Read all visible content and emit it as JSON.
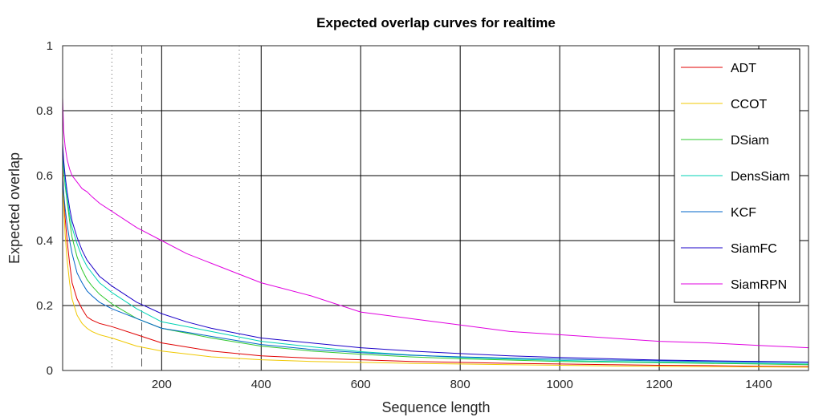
{
  "chart_data": {
    "type": "line",
    "title": "Expected overlap curves for realtime",
    "xlabel": "Sequence length",
    "ylabel": "Expected overlap",
    "xlim": [
      1,
      1500
    ],
    "ylim": [
      0,
      1
    ],
    "xticks": [
      200,
      400,
      600,
      800,
      1000,
      1200,
      1400
    ],
    "xtick_labels": [
      "200",
      "400",
      "600",
      "800",
      "1000",
      "1200",
      "1400"
    ],
    "yticks": [
      0,
      0.2,
      0.4,
      0.6,
      0.8,
      1
    ],
    "ytick_labels": [
      "0",
      "0.2",
      "0.4",
      "0.6",
      "0.8",
      "1"
    ],
    "grid": true,
    "legend_position": "top-right",
    "vertical_markers": [
      {
        "x": 100,
        "style": "dotted"
      },
      {
        "x": 160,
        "style": "dashed"
      },
      {
        "x": 356,
        "style": "dotted"
      }
    ],
    "series": [
      {
        "name": "ADT",
        "color": "#e00000",
        "x": [
          1,
          3,
          6,
          10,
          15,
          20,
          30,
          40,
          50,
          60,
          75,
          100,
          150,
          200,
          300,
          400,
          500,
          600,
          700,
          800,
          900,
          1000,
          1100,
          1200,
          1300,
          1400,
          1500
        ],
        "y": [
          0.63,
          0.55,
          0.47,
          0.4,
          0.33,
          0.27,
          0.22,
          0.19,
          0.165,
          0.155,
          0.145,
          0.135,
          0.11,
          0.085,
          0.06,
          0.045,
          0.038,
          0.033,
          0.028,
          0.025,
          0.022,
          0.02,
          0.018,
          0.016,
          0.015,
          0.013,
          0.012
        ]
      },
      {
        "name": "CCOT",
        "color": "#f0c800",
        "x": [
          1,
          3,
          6,
          10,
          15,
          20,
          30,
          40,
          50,
          60,
          75,
          100,
          150,
          200,
          300,
          400,
          500,
          600,
          700,
          800,
          900,
          1000,
          1100,
          1200,
          1300,
          1400,
          1500
        ],
        "y": [
          0.62,
          0.52,
          0.42,
          0.34,
          0.27,
          0.22,
          0.17,
          0.145,
          0.13,
          0.12,
          0.11,
          0.1,
          0.075,
          0.06,
          0.042,
          0.033,
          0.028,
          0.025,
          0.022,
          0.02,
          0.018,
          0.016,
          0.014,
          0.013,
          0.012,
          0.011,
          0.01
        ]
      },
      {
        "name": "DSiam",
        "color": "#2ec82e",
        "x": [
          1,
          3,
          6,
          10,
          15,
          20,
          30,
          40,
          50,
          60,
          75,
          100,
          150,
          200,
          250,
          300,
          400,
          500,
          600,
          700,
          800,
          900,
          1000,
          1100,
          1200,
          1300,
          1400,
          1500
        ],
        "y": [
          0.66,
          0.62,
          0.57,
          0.52,
          0.46,
          0.41,
          0.35,
          0.31,
          0.28,
          0.26,
          0.235,
          0.205,
          0.16,
          0.13,
          0.115,
          0.1,
          0.075,
          0.06,
          0.05,
          0.042,
          0.036,
          0.032,
          0.028,
          0.026,
          0.024,
          0.022,
          0.02,
          0.018
        ]
      },
      {
        "name": "DensSiam",
        "color": "#00d2b4",
        "x": [
          1,
          3,
          6,
          10,
          15,
          20,
          30,
          40,
          50,
          60,
          75,
          100,
          150,
          200,
          250,
          300,
          400,
          500,
          600,
          700,
          800,
          900,
          1000,
          1100,
          1200,
          1300,
          1400,
          1500
        ],
        "y": [
          0.68,
          0.63,
          0.58,
          0.53,
          0.48,
          0.44,
          0.39,
          0.35,
          0.32,
          0.3,
          0.27,
          0.24,
          0.19,
          0.15,
          0.135,
          0.12,
          0.09,
          0.073,
          0.058,
          0.048,
          0.04,
          0.035,
          0.031,
          0.028,
          0.026,
          0.024,
          0.022,
          0.02
        ]
      },
      {
        "name": "KCF",
        "color": "#0064c8",
        "x": [
          1,
          3,
          6,
          10,
          15,
          20,
          30,
          40,
          50,
          60,
          75,
          100,
          150,
          200,
          250,
          300,
          400,
          500,
          600,
          700,
          800,
          900,
          1000,
          1100,
          1200,
          1300,
          1400,
          1500
        ],
        "y": [
          0.6,
          0.55,
          0.5,
          0.45,
          0.4,
          0.36,
          0.3,
          0.27,
          0.245,
          0.23,
          0.21,
          0.19,
          0.16,
          0.13,
          0.118,
          0.105,
          0.08,
          0.065,
          0.055,
          0.047,
          0.042,
          0.038,
          0.035,
          0.032,
          0.03,
          0.028,
          0.026,
          0.025
        ]
      },
      {
        "name": "SiamFC",
        "color": "#1a00c8",
        "x": [
          1,
          3,
          6,
          10,
          15,
          20,
          30,
          40,
          50,
          60,
          75,
          100,
          150,
          200,
          250,
          300,
          400,
          500,
          600,
          700,
          800,
          900,
          1000,
          1100,
          1200,
          1300,
          1400,
          1500
        ],
        "y": [
          0.7,
          0.65,
          0.6,
          0.55,
          0.5,
          0.46,
          0.41,
          0.37,
          0.34,
          0.32,
          0.29,
          0.26,
          0.21,
          0.175,
          0.15,
          0.13,
          0.1,
          0.085,
          0.07,
          0.06,
          0.052,
          0.045,
          0.04,
          0.036,
          0.032,
          0.03,
          0.028,
          0.026
        ]
      },
      {
        "name": "SiamRPN",
        "color": "#e000e0",
        "x": [
          1,
          3,
          6,
          10,
          15,
          20,
          30,
          40,
          50,
          60,
          75,
          100,
          150,
          200,
          250,
          300,
          350,
          400,
          500,
          600,
          700,
          800,
          900,
          1000,
          1100,
          1200,
          1300,
          1400,
          1500
        ],
        "y": [
          0.84,
          0.74,
          0.69,
          0.65,
          0.62,
          0.6,
          0.58,
          0.56,
          0.55,
          0.535,
          0.515,
          0.49,
          0.44,
          0.4,
          0.36,
          0.33,
          0.3,
          0.27,
          0.23,
          0.18,
          0.16,
          0.14,
          0.12,
          0.11,
          0.1,
          0.09,
          0.085,
          0.077,
          0.07
        ]
      }
    ]
  }
}
